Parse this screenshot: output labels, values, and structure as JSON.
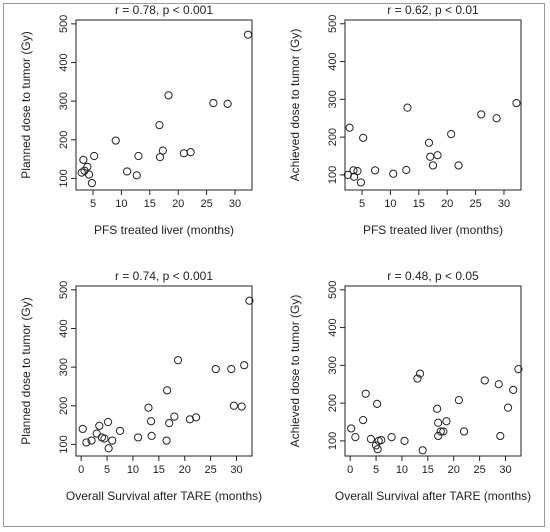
{
  "chart_data": [
    {
      "type": "scatter",
      "title": "r = 0.78, p < 0.001",
      "xlabel": "PFS treated liver (months)",
      "ylabel": "Planned  dose to tumor (Gy)",
      "xlim": [
        2,
        33
      ],
      "ylim": [
        70,
        510
      ],
      "xticks": [
        5,
        10,
        15,
        20,
        25,
        30
      ],
      "yticks": [
        100,
        200,
        300,
        400,
        500
      ],
      "grid": false,
      "points": [
        [
          3.0,
          115
        ],
        [
          3.3,
          148
        ],
        [
          3.5,
          120
        ],
        [
          4.0,
          130
        ],
        [
          4.3,
          110
        ],
        [
          4.8,
          88
        ],
        [
          5.2,
          158
        ],
        [
          9.0,
          198
        ],
        [
          11.0,
          118
        ],
        [
          12.7,
          108
        ],
        [
          13.0,
          158
        ],
        [
          16.7,
          238
        ],
        [
          16.8,
          155
        ],
        [
          17.3,
          172
        ],
        [
          18.3,
          315
        ],
        [
          21.0,
          165
        ],
        [
          22.2,
          168
        ],
        [
          26.2,
          295
        ],
        [
          28.7,
          293
        ],
        [
          32.3,
          472
        ]
      ]
    },
    {
      "type": "scatter",
      "title": "r = 0.62, p < 0.01",
      "xlabel": "PFS treated liver (months)",
      "ylabel": "Achieved dose to tumor (Gy)",
      "xlim": [
        2,
        33
      ],
      "ylim": [
        60,
        510
      ],
      "xticks": [
        5,
        10,
        15,
        20,
        25,
        30
      ],
      "yticks": [
        100,
        200,
        300,
        400,
        500
      ],
      "grid": false,
      "points": [
        [
          2.5,
          100
        ],
        [
          2.8,
          225
        ],
        [
          3.5,
          112
        ],
        [
          3.6,
          95
        ],
        [
          4.2,
          110
        ],
        [
          4.8,
          80
        ],
        [
          5.2,
          198
        ],
        [
          7.3,
          112
        ],
        [
          10.5,
          103
        ],
        [
          12.8,
          113
        ],
        [
          13.0,
          278
        ],
        [
          16.8,
          185
        ],
        [
          17.0,
          148
        ],
        [
          17.5,
          125
        ],
        [
          18.3,
          152
        ],
        [
          20.7,
          208
        ],
        [
          22.0,
          125
        ],
        [
          26.0,
          260
        ],
        [
          28.7,
          250
        ],
        [
          32.2,
          290
        ]
      ]
    },
    {
      "type": "scatter",
      "title": "r = 0.74, p < 0.001",
      "xlabel": "Overall Survival after TARE (months)",
      "ylabel": "Planned  dose to tumor (Gy)",
      "xlim": [
        -1,
        33
      ],
      "ylim": [
        70,
        510
      ],
      "xticks": [
        0,
        5,
        10,
        15,
        20,
        25,
        30
      ],
      "yticks": [
        100,
        200,
        300,
        400,
        500
      ],
      "grid": false,
      "points": [
        [
          0.3,
          140
        ],
        [
          1.0,
          105
        ],
        [
          2.0,
          110
        ],
        [
          3.0,
          128
        ],
        [
          3.5,
          148
        ],
        [
          4.0,
          118
        ],
        [
          4.5,
          115
        ],
        [
          5.2,
          158
        ],
        [
          5.3,
          90
        ],
        [
          6.0,
          110
        ],
        [
          7.5,
          135
        ],
        [
          11.0,
          118
        ],
        [
          13.0,
          195
        ],
        [
          13.5,
          160
        ],
        [
          13.6,
          122
        ],
        [
          16.5,
          110
        ],
        [
          16.6,
          240
        ],
        [
          17.0,
          155
        ],
        [
          18.0,
          172
        ],
        [
          18.7,
          318
        ],
        [
          21.0,
          165
        ],
        [
          22.2,
          170
        ],
        [
          26.0,
          295
        ],
        [
          29.0,
          295
        ],
        [
          29.5,
          200
        ],
        [
          31.0,
          198
        ],
        [
          31.5,
          305
        ],
        [
          32.5,
          472
        ]
      ]
    },
    {
      "type": "scatter",
      "title": "r = 0.48, p < 0.05",
      "xlabel": "Overall Survival after TARE (months)",
      "ylabel": "Achieved dose to tumor (Gy)",
      "xlim": [
        -1,
        33
      ],
      "ylim": [
        60,
        510
      ],
      "xticks": [
        0,
        5,
        10,
        15,
        20,
        25,
        30
      ],
      "yticks": [
        100,
        200,
        300,
        400,
        500
      ],
      "grid": false,
      "points": [
        [
          0.2,
          133
        ],
        [
          1.0,
          110
        ],
        [
          2.5,
          155
        ],
        [
          3.0,
          225
        ],
        [
          4.0,
          105
        ],
        [
          5.0,
          88
        ],
        [
          5.2,
          198
        ],
        [
          5.3,
          78
        ],
        [
          5.5,
          100
        ],
        [
          6.0,
          102
        ],
        [
          8.0,
          110
        ],
        [
          10.5,
          100
        ],
        [
          13.0,
          265
        ],
        [
          13.5,
          278
        ],
        [
          14.0,
          75
        ],
        [
          16.8,
          185
        ],
        [
          17.0,
          148
        ],
        [
          17.0,
          113
        ],
        [
          17.5,
          125
        ],
        [
          18.0,
          125
        ],
        [
          18.6,
          152
        ],
        [
          21.0,
          208
        ],
        [
          22.0,
          125
        ],
        [
          26.0,
          260
        ],
        [
          28.7,
          250
        ],
        [
          29.0,
          113
        ],
        [
          30.5,
          188
        ],
        [
          31.5,
          235
        ],
        [
          32.5,
          290
        ]
      ]
    }
  ]
}
